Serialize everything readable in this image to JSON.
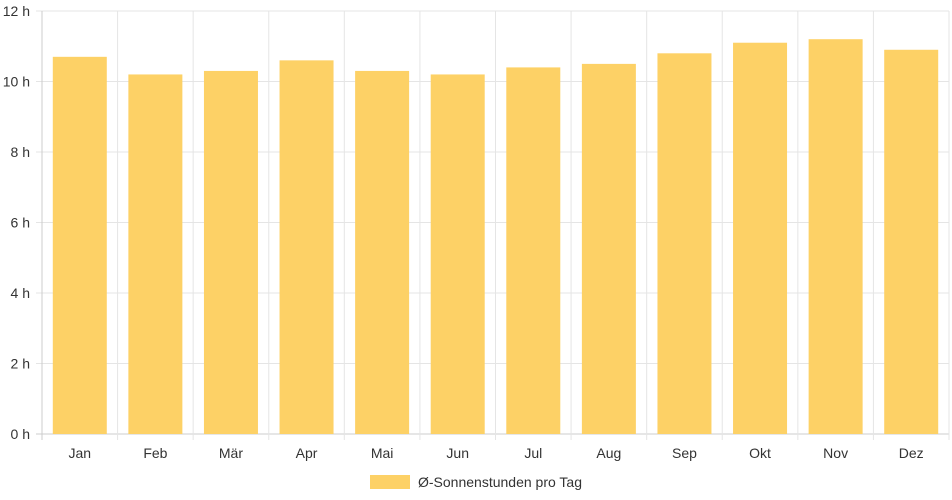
{
  "chart_data": {
    "type": "bar",
    "categories": [
      "Jan",
      "Feb",
      "Mär",
      "Apr",
      "Mai",
      "Jun",
      "Jul",
      "Aug",
      "Sep",
      "Okt",
      "Nov",
      "Dez"
    ],
    "series": [
      {
        "name": "Ø-Sonnenstunden pro Tag",
        "values": [
          10.7,
          10.2,
          10.3,
          10.6,
          10.3,
          10.2,
          10.4,
          10.5,
          10.8,
          11.1,
          11.2,
          10.9
        ]
      }
    ],
    "ylim": [
      0,
      12
    ],
    "yticks": [
      0,
      2,
      4,
      6,
      8,
      10,
      12
    ],
    "y_tick_suffix": " h",
    "grid": true,
    "legend_position": "bottom",
    "colors": {
      "bar": "#fdd166",
      "grid": "#e5e5e5",
      "axis": "#cccccc"
    }
  }
}
